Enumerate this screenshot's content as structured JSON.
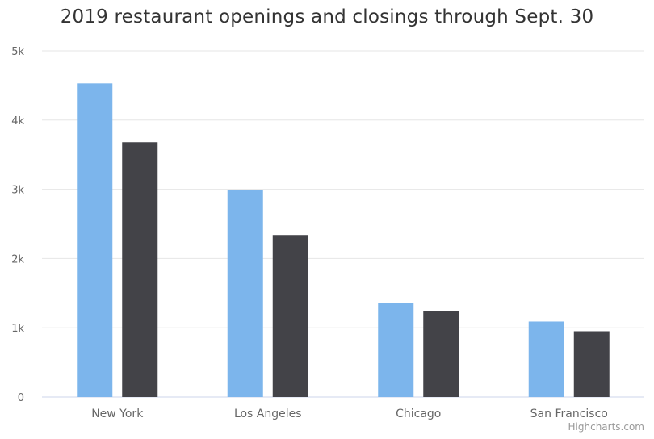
{
  "chart_data": {
    "type": "bar",
    "title": "2019 restaurant openings and closings through Sept. 30",
    "categories": [
      "New York",
      "Los Angeles",
      "Chicago",
      "San Francisco"
    ],
    "series": [
      {
        "values": [
          4530,
          2990,
          1360,
          1090
        ],
        "color": "#7cb5ec"
      },
      {
        "values": [
          3680,
          2340,
          1240,
          950
        ],
        "color": "#434348"
      }
    ],
    "y_ticks": [
      0,
      1000,
      2000,
      3000,
      4000,
      5000
    ],
    "y_tick_labels": [
      "0",
      "1k",
      "2k",
      "3k",
      "4k",
      "5k"
    ],
    "ylim": [
      0,
      5000
    ],
    "xlabel": "",
    "ylabel": "",
    "grid": true,
    "legend": "none"
  },
  "credits": "Highcharts.com",
  "colors": {
    "grid": "#e6e6e6",
    "axis_line": "#ccd6eb",
    "tick_text": "#666666",
    "title_text": "#333333"
  }
}
